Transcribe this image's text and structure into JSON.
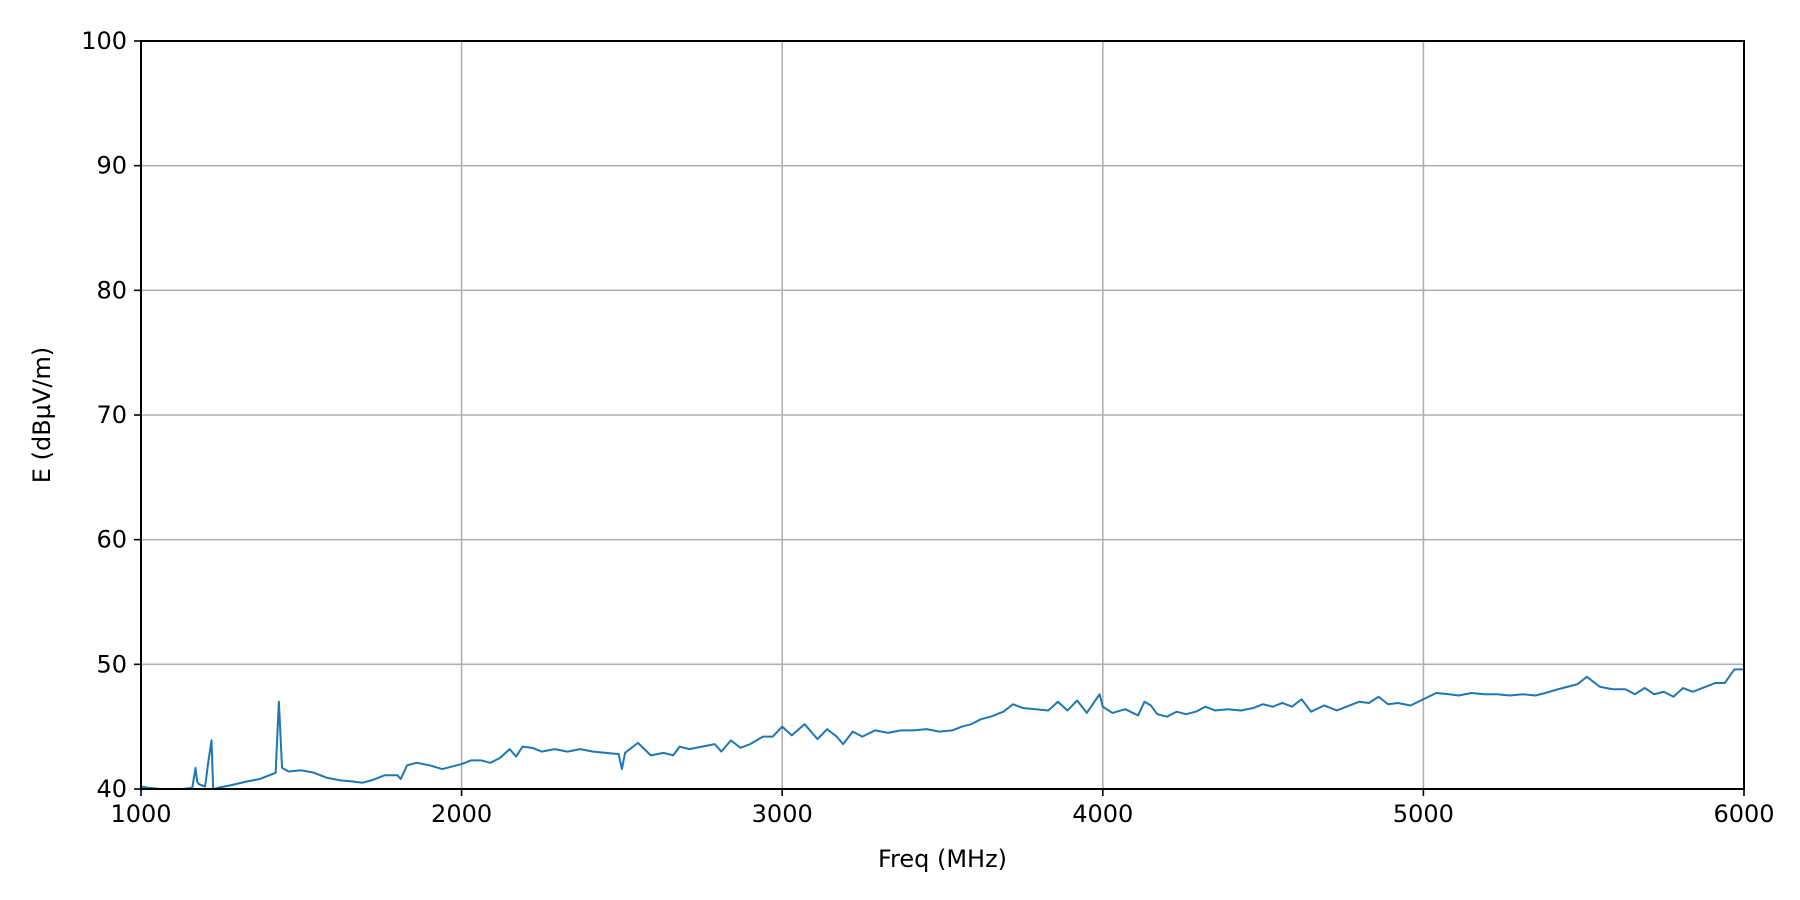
{
  "chart_data": {
    "type": "line",
    "title": "",
    "xlabel": "Freq (MHz)",
    "ylabel": "E (dBµV/m)",
    "xlim": [
      1000,
      6000
    ],
    "ylim": [
      40,
      100
    ],
    "xticks": [
      1000,
      2000,
      3000,
      4000,
      5000,
      6000
    ],
    "yticks": [
      40,
      50,
      60,
      70,
      80,
      90,
      100
    ],
    "grid": true,
    "legend": "none",
    "colors": {
      "line": "#1f77b4",
      "grid": "#b0b0b0",
      "axis": "#000000"
    },
    "series": [
      {
        "x": [
          1000,
          1020,
          1060,
          1100,
          1130,
          1160,
          1170,
          1175,
          1180,
          1200,
          1210,
          1220,
          1225,
          1230,
          1240,
          1280,
          1330,
          1370,
          1400,
          1410,
          1420,
          1430,
          1440,
          1460,
          1500,
          1540,
          1580,
          1620,
          1660,
          1690,
          1720,
          1760,
          1800,
          1810,
          1830,
          1860,
          1900,
          1940,
          2000,
          2030,
          2060,
          2090,
          2120,
          2150,
          2170,
          2190,
          2220,
          2250,
          2290,
          2330,
          2370,
          2410,
          2450,
          2490,
          2500,
          2510,
          2550,
          2590,
          2630,
          2660,
          2680,
          2710,
          2750,
          2790,
          2810,
          2840,
          2870,
          2900,
          2940,
          2970,
          3000,
          3030,
          3070,
          3110,
          3140,
          3170,
          3190,
          3220,
          3250,
          3290,
          3330,
          3370,
          3410,
          3450,
          3490,
          3530,
          3560,
          3590,
          3620,
          3650,
          3690,
          3720,
          3750,
          3790,
          3830,
          3860,
          3890,
          3920,
          3950,
          3990,
          4000,
          4030,
          4070,
          4110,
          4130,
          4150,
          4170,
          4200,
          4230,
          4260,
          4290,
          4320,
          4350,
          4390,
          4430,
          4470,
          4500,
          4530,
          4560,
          4590,
          4620,
          4650,
          4690,
          4730,
          4770,
          4800,
          4830,
          4860,
          4890,
          4920,
          4960,
          5000,
          5040,
          5080,
          5110,
          5150,
          5190,
          5230,
          5270,
          5310,
          5350,
          5380,
          5420,
          5450,
          5480,
          5510,
          5550,
          5590,
          5630,
          5660,
          5690,
          5720,
          5750,
          5780,
          5810,
          5840,
          5880,
          5910,
          5940,
          5970,
          6000
        ],
        "y": [
          40.2,
          40.1,
          40.0,
          40.0,
          40.0,
          40.1,
          41.7,
          40.6,
          40.4,
          40.2,
          42.2,
          43.9,
          40.1,
          40.0,
          40.1,
          40.3,
          40.6,
          40.8,
          41.1,
          41.2,
          41.3,
          47.0,
          41.7,
          41.4,
          41.5,
          41.3,
          40.9,
          40.7,
          40.6,
          40.5,
          40.7,
          41.1,
          41.1,
          40.8,
          41.9,
          42.1,
          41.9,
          41.6,
          42.0,
          42.3,
          42.3,
          42.1,
          42.5,
          43.2,
          42.6,
          43.4,
          43.3,
          43.0,
          43.2,
          43.0,
          43.2,
          43.0,
          42.9,
          42.8,
          41.6,
          42.9,
          43.7,
          42.7,
          42.9,
          42.7,
          43.4,
          43.2,
          43.4,
          43.6,
          43.0,
          43.9,
          43.3,
          43.6,
          44.2,
          44.2,
          45.0,
          44.3,
          45.2,
          44.0,
          44.8,
          44.2,
          43.6,
          44.6,
          44.2,
          44.7,
          44.5,
          44.7,
          44.7,
          44.8,
          44.6,
          44.7,
          45.0,
          45.2,
          45.6,
          45.8,
          46.2,
          46.8,
          46.5,
          46.4,
          46.3,
          47.0,
          46.3,
          47.1,
          46.1,
          47.6,
          46.6,
          46.1,
          46.4,
          45.9,
          47.0,
          46.7,
          46.0,
          45.8,
          46.2,
          46.0,
          46.2,
          46.6,
          46.3,
          46.4,
          46.3,
          46.5,
          46.8,
          46.6,
          46.9,
          46.6,
          47.2,
          46.2,
          46.7,
          46.3,
          46.7,
          47.0,
          46.9,
          47.4,
          46.8,
          46.9,
          46.7,
          47.2,
          47.7,
          47.6,
          47.5,
          47.7,
          47.6,
          47.6,
          47.5,
          47.6,
          47.5,
          47.7,
          48.0,
          48.2,
          48.4,
          49.0,
          48.2,
          48.0,
          48.0,
          47.6,
          48.1,
          47.6,
          47.8,
          47.4,
          48.1,
          47.8,
          48.2,
          48.5,
          48.5,
          49.6,
          49.6
        ]
      }
    ]
  }
}
